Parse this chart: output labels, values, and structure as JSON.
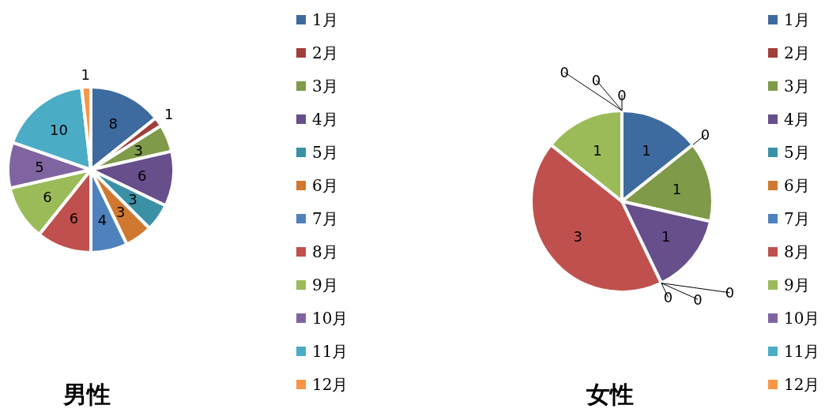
{
  "chart_data": [
    {
      "type": "pie",
      "title": "男性",
      "categories": [
        "1月",
        "2月",
        "3月",
        "4月",
        "5月",
        "6月",
        "7月",
        "8月",
        "9月",
        "10月",
        "11月",
        "12月"
      ],
      "values": [
        8,
        1,
        3,
        6,
        3,
        3,
        4,
        6,
        6,
        5,
        10,
        1
      ],
      "colors": [
        "#3e6b9f",
        "#a03e3b",
        "#7f9a48",
        "#664f8a",
        "#3a91a6",
        "#d0782f",
        "#4f81bd",
        "#c0504d",
        "#9bbb59",
        "#8064a2",
        "#4bacc6",
        "#f79646"
      ],
      "data_labels": true,
      "legend": "right"
    },
    {
      "type": "pie",
      "title": "女性",
      "categories": [
        "1月",
        "2月",
        "3月",
        "4月",
        "5月",
        "6月",
        "7月",
        "8月",
        "9月",
        "10月",
        "11月",
        "12月"
      ],
      "values": [
        1,
        0,
        1,
        1,
        0,
        0,
        0,
        3,
        1,
        0,
        0,
        0
      ],
      "colors": [
        "#3e6b9f",
        "#a03e3b",
        "#7f9a48",
        "#664f8a",
        "#3a91a6",
        "#d0782f",
        "#4f81bd",
        "#c0504d",
        "#9bbb59",
        "#8064a2",
        "#4bacc6",
        "#f79646"
      ],
      "value_labels": [
        "1",
        "0",
        "1",
        "1",
        "0",
        "0",
        "0",
        "3",
        "1",
        "0",
        "0",
        "0"
      ],
      "legend": "right"
    }
  ]
}
